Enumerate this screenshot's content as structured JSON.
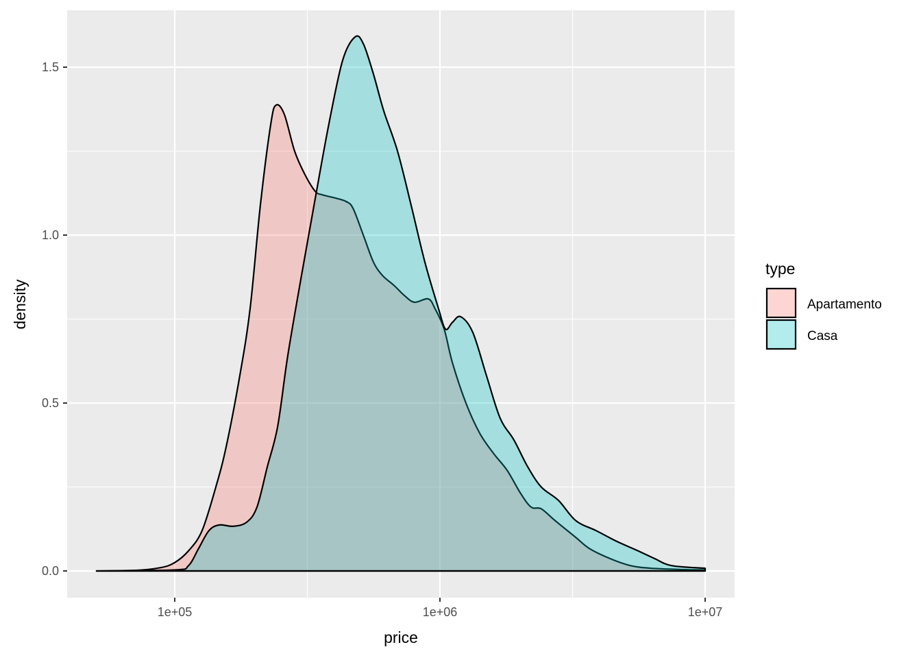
{
  "chart_data": {
    "type": "area",
    "subtype": "density",
    "xlabel": "price",
    "ylabel": "density",
    "x_scale": "log10",
    "xlim_log10": [
      4.594,
      7.111
    ],
    "ylim": [
      -0.078,
      1.67
    ],
    "x_ticks": [
      {
        "log10": 5,
        "label": "1e+05"
      },
      {
        "log10": 6,
        "label": "1e+06"
      },
      {
        "log10": 7,
        "label": "1e+07"
      }
    ],
    "y_ticks": [
      {
        "value": 0,
        "label": "0.0"
      },
      {
        "value": 0.5,
        "label": "0.5"
      },
      {
        "value": 1.0,
        "label": "1.0"
      },
      {
        "value": 1.5,
        "label": "1.5"
      }
    ],
    "grid": true,
    "legend": {
      "title": "type",
      "placement": "right"
    },
    "series": [
      {
        "name": "Apartamento",
        "color": "#F8766D",
        "fill_alpha": 0.3,
        "x_log10": [
          4.705,
          4.858,
          4.948,
          5.0,
          5.052,
          5.103,
          5.155,
          5.194,
          5.245,
          5.284,
          5.323,
          5.362,
          5.382,
          5.413,
          5.452,
          5.491,
          5.53,
          5.556,
          5.607,
          5.646,
          5.672,
          5.711,
          5.749,
          5.783,
          5.827,
          5.866,
          5.904,
          5.956,
          5.982,
          6.016,
          6.047,
          6.098,
          6.15,
          6.202,
          6.253,
          6.305,
          6.344,
          6.382,
          6.434,
          6.512,
          6.563,
          6.641,
          6.718,
          6.796,
          6.925,
          7.0
        ],
        "density": [
          0,
          0.002,
          0.01,
          0.025,
          0.06,
          0.12,
          0.25,
          0.37,
          0.58,
          0.78,
          1.09,
          1.33,
          1.387,
          1.36,
          1.25,
          1.18,
          1.13,
          1.12,
          1.11,
          1.1,
          1.08,
          1.0,
          0.92,
          0.88,
          0.85,
          0.82,
          0.8,
          0.81,
          0.78,
          0.72,
          0.62,
          0.5,
          0.41,
          0.35,
          0.3,
          0.23,
          0.19,
          0.185,
          0.15,
          0.1,
          0.067,
          0.037,
          0.016,
          0.008,
          0.004,
          0.003
        ]
      },
      {
        "name": "Casa",
        "color": "#00BFC4",
        "fill_alpha": 0.3,
        "x_log10": [
          4.705,
          5.0,
          5.052,
          5.09,
          5.129,
          5.168,
          5.22,
          5.271,
          5.31,
          5.349,
          5.388,
          5.426,
          5.478,
          5.53,
          5.581,
          5.633,
          5.68,
          5.711,
          5.749,
          5.788,
          5.84,
          5.891,
          5.943,
          5.995,
          6.021,
          6.047,
          6.078,
          6.124,
          6.176,
          6.227,
          6.279,
          6.331,
          6.382,
          6.447,
          6.512,
          6.589,
          6.667,
          6.744,
          6.809,
          6.873,
          7.0
        ],
        "density": [
          0,
          0.003,
          0.016,
          0.067,
          0.12,
          0.137,
          0.133,
          0.145,
          0.19,
          0.31,
          0.43,
          0.64,
          0.88,
          1.11,
          1.33,
          1.52,
          1.59,
          1.57,
          1.48,
          1.37,
          1.25,
          1.09,
          0.92,
          0.78,
          0.72,
          0.74,
          0.757,
          0.71,
          0.58,
          0.455,
          0.39,
          0.31,
          0.25,
          0.21,
          0.15,
          0.12,
          0.088,
          0.061,
          0.037,
          0.016,
          0.008
        ]
      }
    ]
  }
}
